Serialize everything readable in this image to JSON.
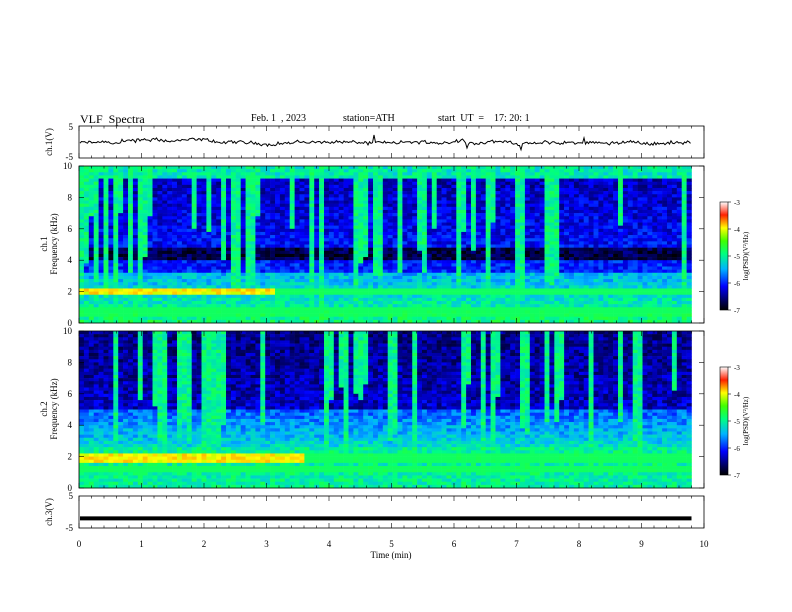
{
  "header": {
    "title": "VLF  Spectra",
    "date": "Feb. 1  , 2023",
    "station": "station=ATH",
    "start": "start  UT  =    17: 20: 1"
  },
  "chart_data": [
    {
      "type": "line",
      "name": "ch1-waveform",
      "ylabel": "ch.1(V)",
      "ylim": [
        -5,
        5
      ],
      "yticks": [
        "5",
        "-5"
      ],
      "xlim": [
        0,
        10
      ],
      "trace_span_min": [
        0,
        9.8
      ]
    },
    {
      "type": "heatmap",
      "name": "ch1-spectrogram",
      "ylabel": "ch.1\nFrequency  (kHz)",
      "ylim": [
        0,
        10
      ],
      "yticks": [
        "0",
        "2",
        "4",
        "6",
        "8",
        "10"
      ],
      "xlim": [
        0,
        10
      ],
      "data_span_min": [
        0,
        9.8
      ],
      "colorbar": {
        "label": "log(PSD)(V²/Hz)",
        "range": [
          -7,
          -3
        ],
        "ticks": [
          "-3",
          "-4",
          "-5",
          "-6",
          "-7"
        ]
      },
      "features": {
        "quiet_band_khz": [
          4.0,
          4.8
        ],
        "tone_khz": [
          2.1,
          2.0,
          0.8,
          0.5
        ],
        "strong_tone_span_min": [
          0,
          3.1
        ]
      }
    },
    {
      "type": "heatmap",
      "name": "ch2-spectrogram",
      "ylabel": "ch.2\nFrequency  (kHz)",
      "ylim": [
        0,
        10
      ],
      "yticks": [
        "0",
        "2",
        "4",
        "6",
        "8",
        "10"
      ],
      "xlim": [
        0,
        10
      ],
      "data_span_min": [
        0,
        9.8
      ],
      "colorbar": {
        "label": "log(PSD)(V²/Hz)",
        "range": [
          -7,
          -3
        ],
        "ticks": [
          "-3",
          "-4",
          "-5",
          "-6",
          "-7"
        ]
      },
      "features": {
        "tone_khz": [
          2.0,
          1.8,
          1.2
        ],
        "strong_tone_span_min": [
          0,
          3.6
        ]
      }
    },
    {
      "type": "line",
      "name": "ch3-waveform",
      "ylabel": "ch.3(V)",
      "ylim": [
        -5,
        5
      ],
      "yticks": [
        "5",
        "-5"
      ],
      "xlabel": "Time  (min)",
      "xlim": [
        0,
        10
      ],
      "xticks": [
        "0",
        "1",
        "2",
        "3",
        "4",
        "5",
        "6",
        "7",
        "8",
        "9",
        "10"
      ],
      "trace_span_min": [
        0,
        9.8
      ],
      "trace_level_v": -2
    }
  ]
}
